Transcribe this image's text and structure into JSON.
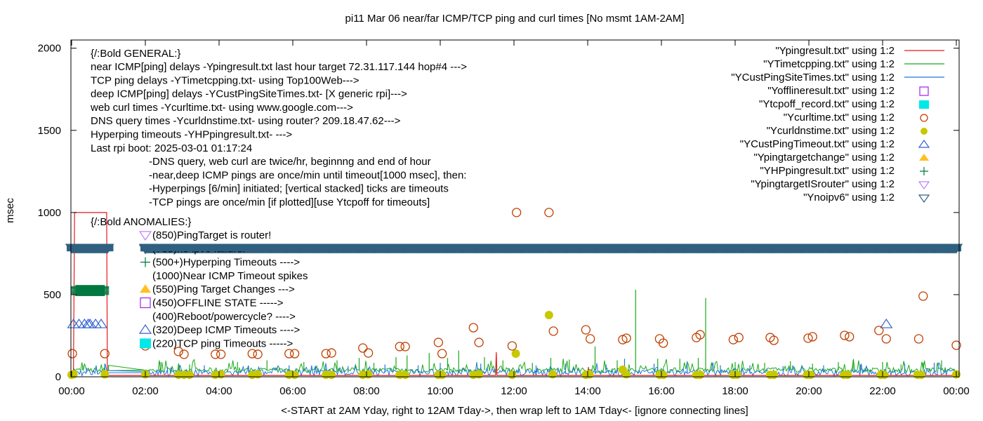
{
  "chart_data": {
    "type": "line",
    "title": "pi11 Mar 06  near/far ICMP/TCP ping and curl times [No msmt 1AM-2AM]",
    "xlabel": "<-START at 2AM Yday, right to 12AM Tday->, then wrap left to 1AM Tday<- [ignore connecting lines]",
    "ylabel": "msec",
    "xlim": [
      0,
      24
    ],
    "ylim": [
      0,
      2050
    ],
    "x_ticks": [
      {
        "value": 0,
        "label": "00:00"
      },
      {
        "value": 2,
        "label": "02:00"
      },
      {
        "value": 4,
        "label": "04:00"
      },
      {
        "value": 6,
        "label": "06:00"
      },
      {
        "value": 8,
        "label": "08:00"
      },
      {
        "value": 10,
        "label": "10:00"
      },
      {
        "value": 12,
        "label": "12:00"
      },
      {
        "value": 14,
        "label": "14:00"
      },
      {
        "value": 16,
        "label": "16:00"
      },
      {
        "value": 18,
        "label": "18:00"
      },
      {
        "value": 20,
        "label": "20:00"
      },
      {
        "value": 22,
        "label": "22:00"
      },
      {
        "value": 24,
        "label": "00:00"
      }
    ],
    "y_ticks": [
      {
        "value": 0,
        "label": "0"
      },
      {
        "value": 500,
        "label": "500"
      },
      {
        "value": 1000,
        "label": "1000"
      },
      {
        "value": 1500,
        "label": "1500"
      },
      {
        "value": 2000,
        "label": "2000"
      }
    ],
    "grid": false,
    "legend_position": "top-right",
    "series": [
      {
        "name": "\"Ypingresult.txt\" using 1:2",
        "style": "line",
        "color": "#e41a1c",
        "baseline": 8,
        "points": [
          [
            0.05,
            8
          ],
          [
            0.08,
            1000
          ],
          [
            0.95,
            1000
          ],
          [
            0.97,
            8
          ],
          [
            11.5,
            8
          ],
          [
            11.52,
            150
          ],
          [
            11.54,
            8
          ],
          [
            14.0,
            8
          ],
          [
            14.02,
            60
          ],
          [
            14.04,
            8
          ],
          [
            24,
            8
          ]
        ]
      },
      {
        "name": "\"YTimetcpping.txt\" using 1:2",
        "style": "line",
        "color": "#1aaa1a",
        "baseline": 40,
        "spikes": [
          [
            0.3,
            70
          ],
          [
            0.9,
            80
          ],
          [
            1.0,
            70
          ],
          [
            2.4,
            90
          ],
          [
            2.9,
            80
          ],
          [
            3.2,
            75
          ],
          [
            4.5,
            90
          ],
          [
            5.3,
            100
          ],
          [
            6.3,
            90
          ],
          [
            7.2,
            100
          ],
          [
            7.8,
            115
          ],
          [
            8.2,
            85
          ],
          [
            8.8,
            120
          ],
          [
            9.1,
            130
          ],
          [
            9.7,
            145
          ],
          [
            10.2,
            115
          ],
          [
            10.5,
            160
          ],
          [
            11.2,
            120
          ],
          [
            11.7,
            100
          ],
          [
            12.5,
            85
          ],
          [
            13.0,
            115
          ],
          [
            13.5,
            105
          ],
          [
            14.2,
            185
          ],
          [
            14.8,
            100
          ],
          [
            15.3,
            530
          ],
          [
            15.9,
            110
          ],
          [
            16.5,
            110
          ],
          [
            17.0,
            115
          ],
          [
            17.2,
            480
          ],
          [
            18.0,
            90
          ],
          [
            18.8,
            85
          ],
          [
            19.5,
            95
          ],
          [
            20.1,
            80
          ],
          [
            20.8,
            90
          ],
          [
            21.2,
            100
          ],
          [
            22.0,
            90
          ],
          [
            22.5,
            75
          ],
          [
            23.1,
            85
          ],
          [
            23.6,
            100
          ]
        ]
      },
      {
        "name": "\"YCustPingSiteTimes.txt\" using 1:2",
        "style": "line",
        "color": "#1f78d8",
        "baseline": 25,
        "spikes": [
          [
            0.4,
            55
          ],
          [
            2.6,
            60
          ],
          [
            3.6,
            70
          ],
          [
            4.8,
            65
          ],
          [
            5.9,
            70
          ],
          [
            6.6,
            60
          ],
          [
            7.5,
            65
          ],
          [
            8.5,
            75
          ],
          [
            9.4,
            70
          ],
          [
            10.0,
            85
          ],
          [
            11.1,
            80
          ],
          [
            12.6,
            70
          ],
          [
            13.4,
            80
          ],
          [
            14.5,
            75
          ],
          [
            15.0,
            110
          ],
          [
            15.8,
            80
          ],
          [
            16.7,
            95
          ],
          [
            17.6,
            70
          ],
          [
            18.4,
            70
          ],
          [
            19.3,
            65
          ],
          [
            20.4,
            70
          ],
          [
            21.4,
            75
          ],
          [
            22.6,
            80
          ],
          [
            23.4,
            85
          ]
        ]
      },
      {
        "name": "\"Yofflineresult.txt\" using 1:2",
        "style": "points",
        "marker": "open-square",
        "color": "#a020f0",
        "points": []
      },
      {
        "name": "\"Ytcpoff_record.txt\" using 1:2",
        "style": "points",
        "marker": "filled-square",
        "color": "#00e8e8",
        "points": []
      },
      {
        "name": "\"Ycurltime.txt\" using 1:2",
        "style": "points",
        "marker": "open-circle",
        "color": "#c04000",
        "points": [
          [
            0.02,
            141
          ],
          [
            0.9,
            141
          ],
          [
            2.0,
            188
          ],
          [
            2.9,
            154
          ],
          [
            3.05,
            137
          ],
          [
            3.9,
            137
          ],
          [
            4.05,
            137
          ],
          [
            4.9,
            141
          ],
          [
            5.05,
            137
          ],
          [
            5.9,
            141
          ],
          [
            6.05,
            141
          ],
          [
            6.9,
            141
          ],
          [
            7.05,
            145
          ],
          [
            7.9,
            175
          ],
          [
            8.05,
            145
          ],
          [
            8.9,
            184
          ],
          [
            9.05,
            184
          ],
          [
            9.95,
            209
          ],
          [
            10.05,
            141
          ],
          [
            10.9,
            299
          ],
          [
            11.05,
            209
          ],
          [
            11.95,
            188
          ],
          [
            12.07,
            1000
          ],
          [
            12.95,
            1000
          ],
          [
            13.07,
            278
          ],
          [
            13.95,
            286
          ],
          [
            14.07,
            231
          ],
          [
            14.95,
            226
          ],
          [
            15.05,
            235
          ],
          [
            15.95,
            231
          ],
          [
            16.05,
            205
          ],
          [
            16.95,
            239
          ],
          [
            17.05,
            256
          ],
          [
            17.95,
            226
          ],
          [
            18.1,
            239
          ],
          [
            18.95,
            239
          ],
          [
            19.05,
            222
          ],
          [
            19.98,
            235
          ],
          [
            20.1,
            244
          ],
          [
            20.97,
            252
          ],
          [
            21.1,
            244
          ],
          [
            21.9,
            282
          ],
          [
            22.1,
            231
          ],
          [
            22.98,
            231
          ],
          [
            23.1,
            491
          ],
          [
            24.0,
            192
          ]
        ]
      },
      {
        "name": "\"Ycurldnstime.txt\" using 1:2",
        "style": "points",
        "marker": "filled-circle",
        "color": "#c8c800",
        "points": [
          [
            0.0,
            12
          ],
          [
            0.05,
            15
          ],
          [
            0.9,
            15
          ],
          [
            2.0,
            15
          ],
          [
            2.9,
            12
          ],
          [
            3.05,
            12
          ],
          [
            3.2,
            12
          ],
          [
            3.9,
            12
          ],
          [
            4.05,
            15
          ],
          [
            4.9,
            12
          ],
          [
            5.05,
            15
          ],
          [
            5.9,
            12
          ],
          [
            6.05,
            12
          ],
          [
            6.9,
            12
          ],
          [
            7.05,
            12
          ],
          [
            7.9,
            12
          ],
          [
            8.05,
            15
          ],
          [
            8.9,
            12
          ],
          [
            9.05,
            12
          ],
          [
            9.95,
            12
          ],
          [
            10.05,
            12
          ],
          [
            10.9,
            12
          ],
          [
            11.05,
            15
          ],
          [
            11.95,
            12
          ],
          [
            12.05,
            141
          ],
          [
            12.95,
            376
          ],
          [
            13.05,
            15
          ],
          [
            13.95,
            12
          ],
          [
            14.05,
            15
          ],
          [
            14.95,
            43
          ],
          [
            15.05,
            15
          ],
          [
            15.95,
            12
          ],
          [
            16.05,
            12
          ],
          [
            16.95,
            12
          ],
          [
            17.05,
            12
          ],
          [
            17.95,
            12
          ],
          [
            18.05,
            12
          ],
          [
            18.95,
            12
          ],
          [
            19.05,
            12
          ],
          [
            19.95,
            12
          ],
          [
            20.05,
            12
          ],
          [
            20.95,
            12
          ],
          [
            21.05,
            12
          ],
          [
            21.95,
            12
          ],
          [
            22.05,
            12
          ],
          [
            22.95,
            12
          ],
          [
            23.05,
            12
          ],
          [
            24.0,
            15
          ]
        ]
      },
      {
        "name": "\"YCustPingTimeout.txt\" using 1:2",
        "style": "points",
        "marker": "open-triangle",
        "color": "#3060d0",
        "points": [
          [
            0.05,
            320
          ],
          [
            0.2,
            320
          ],
          [
            0.35,
            320
          ],
          [
            0.45,
            320
          ],
          [
            0.5,
            320
          ],
          [
            0.65,
            320
          ],
          [
            0.8,
            320
          ],
          [
            22.1,
            320
          ]
        ]
      },
      {
        "name": "\"Ypingtargetchange\" using 1:2",
        "style": "points",
        "marker": "filled-triangle",
        "color": "#ffc020",
        "points": []
      },
      {
        "name": "\"YHPpingresult.txt\" using 1:2",
        "style": "points",
        "marker": "plus",
        "color": "#007840",
        "points_range": {
          "x_from": 0.1,
          "x_to": 0.9,
          "y_from": 500,
          "y_to": 550
        }
      },
      {
        "name": "\"YpingtargetISrouter\" using 1:2",
        "style": "points",
        "marker": "open-down-triangle",
        "color": "#c080ff",
        "points": []
      },
      {
        "name": "\"Ynoipv6\" using 1:2",
        "style": "points",
        "marker": "open-down-triangle",
        "color": "#306080",
        "segments": [
          {
            "x_from": 0.0,
            "x_to": 1.0,
            "y": 785
          },
          {
            "x_from": 2.0,
            "x_to": 24.0,
            "y": 785
          }
        ]
      }
    ],
    "annotations": {
      "general_header": "{/:Bold GENERAL:}",
      "general_lines": [
        "near ICMP[ping] delays -Ypingresult.txt last hour target 72.31.117.144 hop#4 --->",
        "TCP ping delays -YTimetcpping.txt- using Top100Web--->",
        "deep ICMP[ping] delays -YCustPingSiteTimes.txt- [X generic rpi]--->",
        "web curl times -Ycurltime.txt- using www.google.com--->",
        "DNS query times -Ycurldnstime.txt- using router? 209.18.47.62--->",
        "Hyperping timeouts -YHPpingresult.txt- --->",
        "Last rpi boot: 2025-03-01 01:17:24"
      ],
      "notes": [
        "-DNS query, web curl are twice/hr, beginnng and end of hour",
        "-near,deep ICMP pings are once/min until timeout[1000 msec], then:",
        "  -Hyperpings [6/min] initiated; [vertical stacked] ticks are timeouts",
        "-TCP pings are once/min [if plotted][use Ytcpoff for timeouts]"
      ],
      "anomalies_header": "{/:Bold ANOMALIES:}",
      "anomalies": [
        {
          "label": "(850)PingTarget is router!",
          "marker": "open-down-triangle",
          "color": "#c080ff"
        },
        {
          "label": "(785)no ipv6 failure!",
          "marker": "open-down-triangle",
          "color": "#306080"
        },
        {
          "label": "(500+)Hyperping Timeouts ---->",
          "marker": "plus",
          "color": "#007840"
        },
        {
          "label": "(1000)Near ICMP Timeout spikes",
          "marker": "none",
          "color": ""
        },
        {
          "label": "(550)Ping Target Changes --->",
          "marker": "filled-triangle",
          "color": "#ffc020"
        },
        {
          "label": "(450)OFFLINE STATE ----->",
          "marker": "open-square",
          "color": "#a020f0"
        },
        {
          "label": "(400)Reboot/powercycle? ---->",
          "marker": "none",
          "color": ""
        },
        {
          "label": "(320)Deep ICMP Timeouts ---->",
          "marker": "open-triangle",
          "color": "#3060d0"
        },
        {
          "label": "(220)TCP ping Timeouts ----->",
          "marker": "filled-square",
          "color": "#00e8e8"
        }
      ]
    }
  }
}
